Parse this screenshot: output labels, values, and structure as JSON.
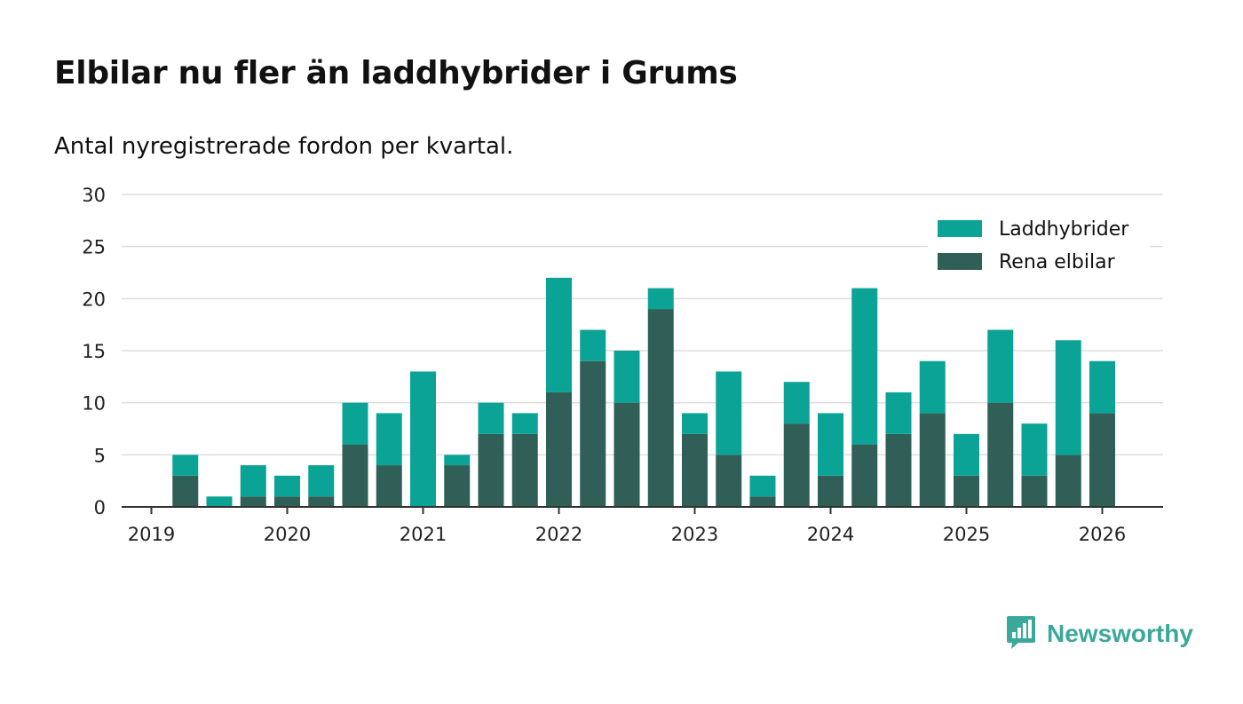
{
  "title": "Elbilar nu fler än laddhybrider i Grums",
  "subtitle": "Antal nyregistrerade fordon per kvartal.",
  "brand": {
    "name": "Newsworthy",
    "icon": "newsworthy-logo-icon"
  },
  "colors": {
    "laddhybrider": "#0aa396",
    "rena_elbilar": "#2f5f56",
    "grid": "#dddddd",
    "axis": "#333333"
  },
  "chart_data": {
    "type": "bar",
    "stacked": true,
    "title": "Elbilar nu fler än laddhybrider i Grums",
    "subtitle": "Antal nyregistrerade fordon per kvartal.",
    "xlabel": "",
    "ylabel": "",
    "ylim": [
      0,
      30
    ],
    "yticks": [
      0,
      5,
      10,
      15,
      20,
      25,
      30
    ],
    "xticks": [
      "2019",
      "2020",
      "2021",
      "2022",
      "2023",
      "2024",
      "2025",
      "2026"
    ],
    "legend_position": "top-right",
    "grid": true,
    "categories": [
      "2019 Q2",
      "2019 Q3",
      "2019 Q4",
      "2020 Q1",
      "2020 Q2",
      "2020 Q3",
      "2020 Q4",
      "2021 Q1",
      "2021 Q2",
      "2021 Q3",
      "2021 Q4",
      "2022 Q1",
      "2022 Q2",
      "2022 Q3",
      "2022 Q4",
      "2023 Q1",
      "2023 Q2",
      "2023 Q3",
      "2023 Q4",
      "2024 Q1",
      "2024 Q2",
      "2024 Q3",
      "2024 Q4",
      "2025 Q1",
      "2025 Q2",
      "2025 Q3",
      "2025 Q4",
      "2026 Q1"
    ],
    "series": [
      {
        "name": "Rena elbilar",
        "values": [
          3,
          0,
          1,
          1,
          1,
          6,
          4,
          0,
          4,
          7,
          7,
          11,
          14,
          10,
          19,
          7,
          5,
          1,
          8,
          3,
          6,
          7,
          9,
          3,
          10,
          3,
          5,
          9
        ]
      },
      {
        "name": "Laddhybrider",
        "values": [
          2,
          1,
          3,
          2,
          3,
          4,
          5,
          13,
          1,
          3,
          2,
          11,
          3,
          5,
          2,
          2,
          8,
          2,
          4,
          6,
          15,
          4,
          5,
          4,
          7,
          5,
          11,
          5
        ]
      }
    ],
    "legend": [
      "Laddhybrider",
      "Rena elbilar"
    ]
  }
}
